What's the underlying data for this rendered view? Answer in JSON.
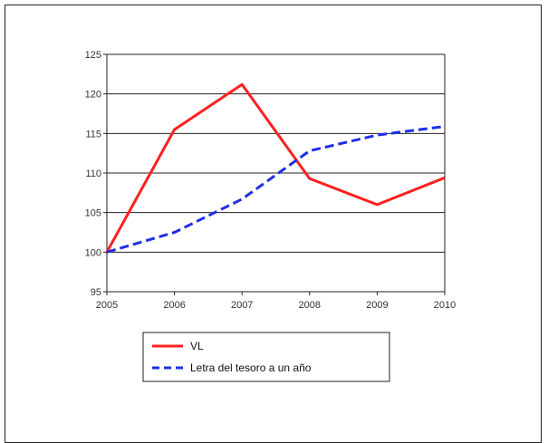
{
  "chart_data": {
    "type": "line",
    "x": [
      "2005",
      "2006",
      "2007",
      "2008",
      "2009",
      "2010"
    ],
    "ylim": [
      95,
      125
    ],
    "yticks": [
      95,
      100,
      105,
      110,
      115,
      120,
      125
    ],
    "grid": true,
    "legend_position": "bottom",
    "series": [
      {
        "name": "VL",
        "values": [
          100,
          115.5,
          121.2,
          109.3,
          106.0,
          109.4
        ],
        "color": "#ff2020",
        "style": "solid"
      },
      {
        "name": "Letra del tesoro a un año",
        "values": [
          100,
          102.5,
          106.7,
          112.8,
          114.8,
          115.9
        ],
        "color": "#1f2ee6",
        "style": "dashed"
      }
    ]
  }
}
